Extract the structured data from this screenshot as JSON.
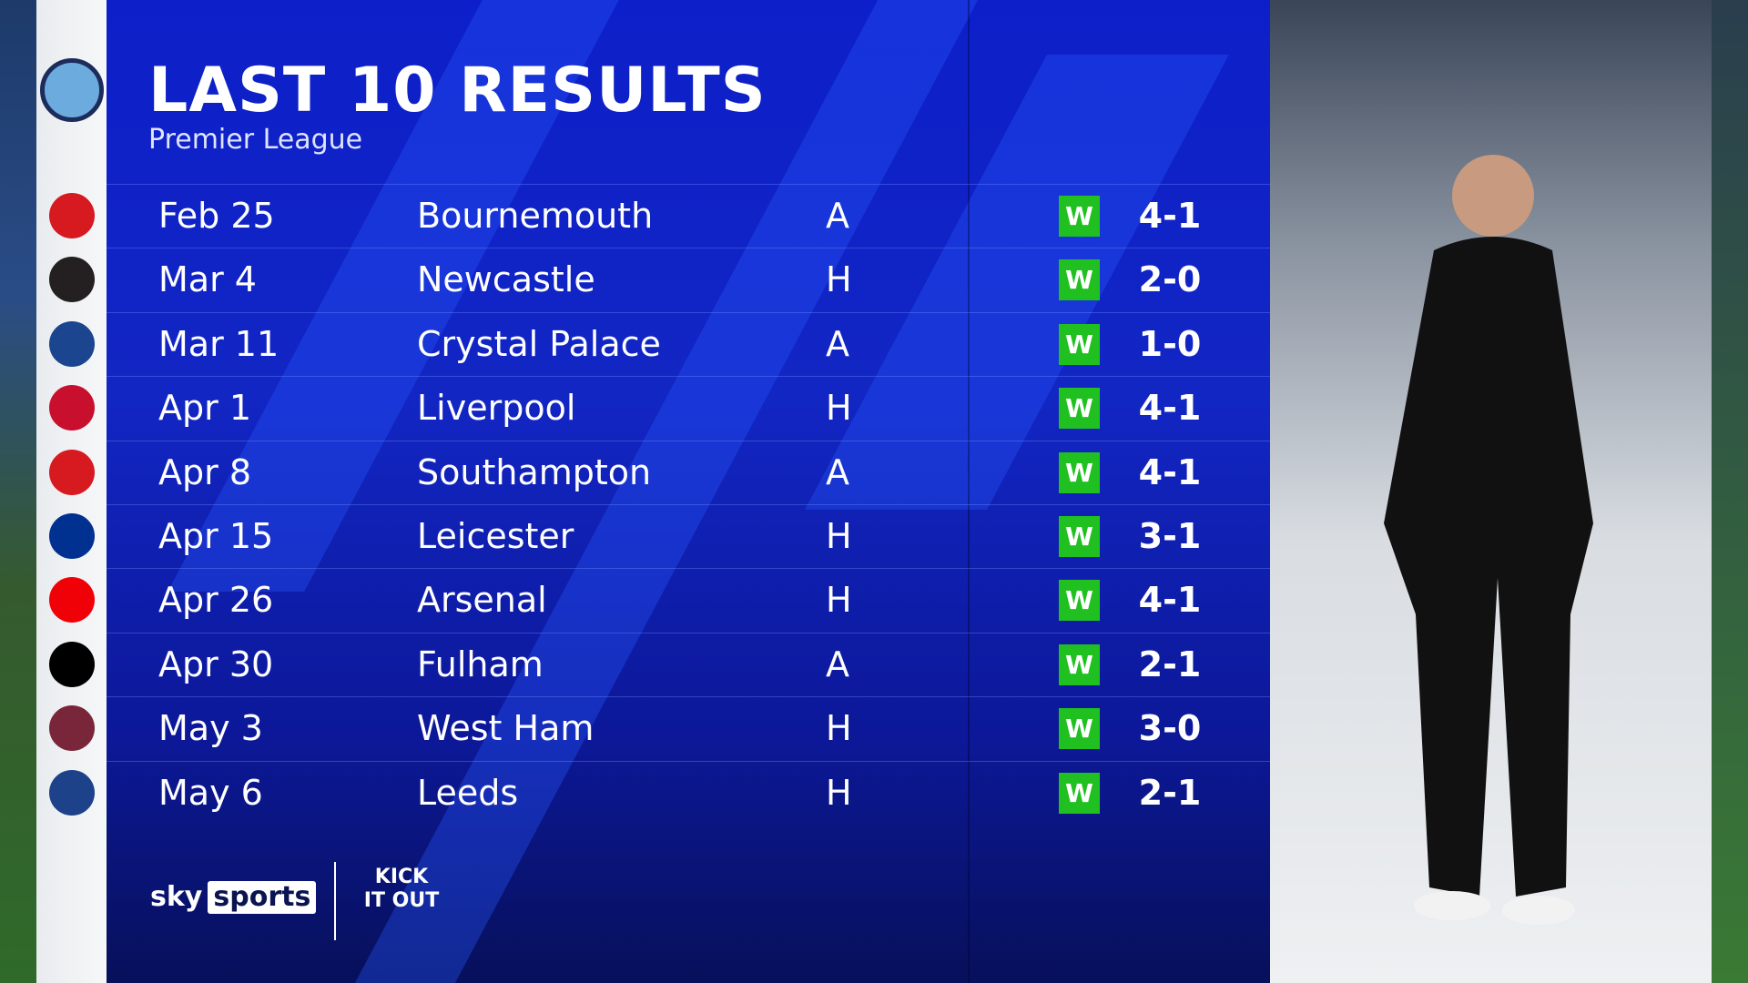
{
  "header": {
    "title": "LAST 10 RESULTS",
    "subtitle": "Premier League"
  },
  "team_crest": "manchester-city-crest",
  "results": [
    {
      "date": "Feb 25",
      "opponent": "Bournemouth",
      "venue": "A",
      "result": "W",
      "score": "4-1",
      "crest_color": "#d71920"
    },
    {
      "date": "Mar 4",
      "opponent": "Newcastle",
      "venue": "H",
      "result": "W",
      "score": "2-0",
      "crest_color": "#241f20"
    },
    {
      "date": "Mar 11",
      "opponent": "Crystal Palace",
      "venue": "A",
      "result": "W",
      "score": "1-0",
      "crest_color": "#1b458f"
    },
    {
      "date": "Apr 1",
      "opponent": "Liverpool",
      "venue": "H",
      "result": "W",
      "score": "4-1",
      "crest_color": "#c8102e"
    },
    {
      "date": "Apr 8",
      "opponent": "Southampton",
      "venue": "A",
      "result": "W",
      "score": "4-1",
      "crest_color": "#d71920"
    },
    {
      "date": "Apr 15",
      "opponent": "Leicester",
      "venue": "H",
      "result": "W",
      "score": "3-1",
      "crest_color": "#003090"
    },
    {
      "date": "Apr 26",
      "opponent": "Arsenal",
      "venue": "H",
      "result": "W",
      "score": "4-1",
      "crest_color": "#ef0107"
    },
    {
      "date": "Apr 30",
      "opponent": "Fulham",
      "venue": "A",
      "result": "W",
      "score": "2-1",
      "crest_color": "#000000"
    },
    {
      "date": "May 3",
      "opponent": "West Ham",
      "venue": "H",
      "result": "W",
      "score": "3-0",
      "crest_color": "#7a263a"
    },
    {
      "date": "May 6",
      "opponent": "Leeds",
      "venue": "H",
      "result": "W",
      "score": "2-1",
      "crest_color": "#1d428a"
    }
  ],
  "colors": {
    "win": "#20c020",
    "panel": "#1226c4"
  },
  "footer": {
    "sky": "sky",
    "sports": "sports",
    "kick_it_out": "KICK IT OUT"
  }
}
